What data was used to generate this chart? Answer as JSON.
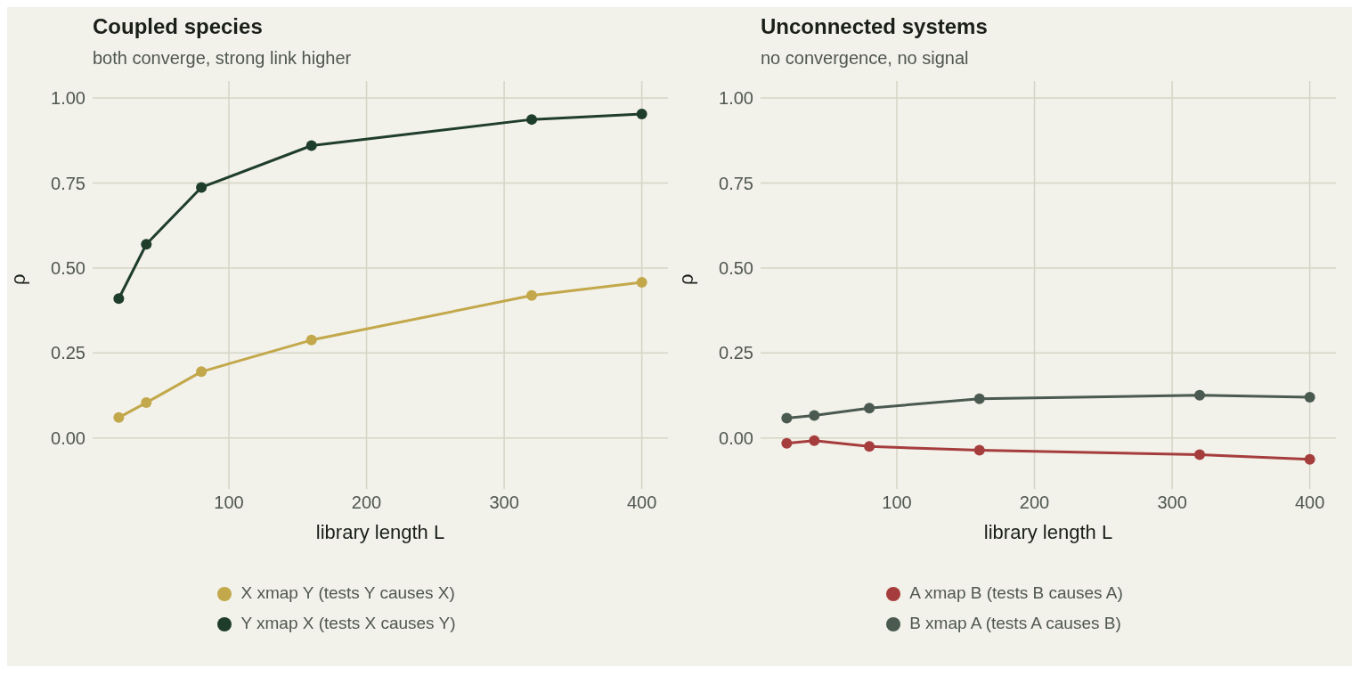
{
  "chart_data": [
    {
      "type": "line",
      "title": "Coupled species",
      "subtitle": "both converge, strong link higher",
      "xlabel": "library length L",
      "ylabel": "ρ",
      "x": [
        20,
        40,
        80,
        160,
        320,
        400
      ],
      "xlim": [
        1,
        419
      ],
      "xticks": [
        100,
        200,
        300,
        400
      ],
      "ylim": [
        -0.15,
        1.05
      ],
      "yticks": [
        {
          "value": 0,
          "label": "0.00"
        },
        {
          "value": 0.25,
          "label": "0.25"
        },
        {
          "value": 0.5,
          "label": "0.50"
        },
        {
          "value": 0.75,
          "label": "0.75"
        },
        {
          "value": 1,
          "label": "1.00"
        }
      ],
      "grid": true,
      "legend": "bottom",
      "marker": "circle",
      "line_style": "solid",
      "series": [
        {
          "name": "X xmap Y  (tests Y causes X)",
          "color": "#c2a84a",
          "values": [
            0.06,
            0.104,
            0.195,
            0.288,
            0.419,
            0.458
          ]
        },
        {
          "name": "Y xmap X  (tests X causes Y)",
          "color": "#1f3d2b",
          "values": [
            0.41,
            0.57,
            0.737,
            0.86,
            0.937,
            0.953
          ]
        }
      ]
    },
    {
      "type": "line",
      "title": "Unconnected systems",
      "subtitle": "no convergence, no signal",
      "xlabel": "library length L",
      "ylabel": "ρ",
      "x": [
        20,
        40,
        80,
        160,
        320,
        400
      ],
      "xlim": [
        1,
        419
      ],
      "xticks": [
        100,
        200,
        300,
        400
      ],
      "ylim": [
        -0.15,
        1.05
      ],
      "yticks": [
        {
          "value": 0,
          "label": "0.00"
        },
        {
          "value": 0.25,
          "label": "0.25"
        },
        {
          "value": 0.5,
          "label": "0.50"
        },
        {
          "value": 0.75,
          "label": "0.75"
        },
        {
          "value": 1,
          "label": "1.00"
        }
      ],
      "grid": true,
      "legend": "bottom",
      "marker": "circle",
      "line_style": "solid",
      "series": [
        {
          "name": "A xmap B  (tests B causes A)",
          "color": "#a63d3d",
          "values": [
            -0.016,
            -0.008,
            -0.025,
            -0.036,
            -0.049,
            -0.063
          ]
        },
        {
          "name": "B xmap A  (tests A causes B)",
          "color": "#4a5a50",
          "values": [
            0.058,
            0.066,
            0.088,
            0.115,
            0.126,
            0.12
          ]
        }
      ]
    }
  ]
}
